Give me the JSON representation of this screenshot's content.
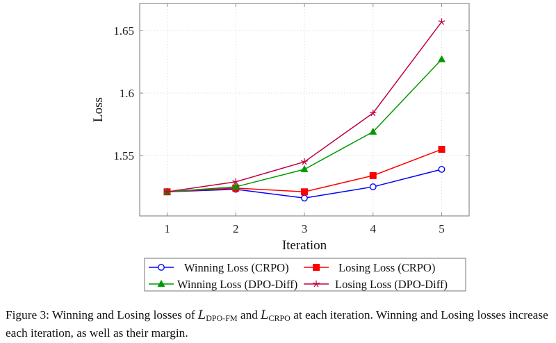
{
  "chart_data": {
    "type": "line",
    "title": "",
    "xlabel": "Iteration",
    "ylabel": "Loss",
    "x": [
      1,
      2,
      3,
      4,
      5
    ],
    "xlim": [
      0.6,
      5.4
    ],
    "ylim": [
      1.5017,
      1.6717
    ],
    "xticks": [
      1,
      2,
      3,
      4,
      5
    ],
    "xtick_labels": [
      "1",
      "2",
      "3",
      "4",
      "5"
    ],
    "yticks": [
      1.55,
      1.6,
      1.65
    ],
    "ytick_labels": [
      "1.55",
      "1.6",
      "1.65"
    ],
    "grid": true,
    "legend_position": "bottom-outside",
    "series": [
      {
        "name": "Winning Loss (CRPO)",
        "color": "#0000ff",
        "marker": "circle-open",
        "values": [
          1.521,
          1.523,
          1.516,
          1.525,
          1.539
        ]
      },
      {
        "name": "Losing Loss (CRPO)",
        "color": "#ff0000",
        "marker": "square",
        "values": [
          1.521,
          1.524,
          1.521,
          1.534,
          1.555
        ]
      },
      {
        "name": "Winning Loss (DPO-Diff)",
        "color": "#009900",
        "marker": "triangle",
        "values": [
          1.521,
          1.525,
          1.539,
          1.569,
          1.627
        ]
      },
      {
        "name": "Losing Loss (DPO-Diff)",
        "color": "#bf0040",
        "marker": "star",
        "values": [
          1.521,
          1.529,
          1.545,
          1.584,
          1.657
        ]
      }
    ]
  },
  "caption": {
    "prefix": "Figure 3: Winning and Losing losses of ",
    "sym1": "L",
    "sub1": "DPO-FM",
    "mid": " and ",
    "sym2": "L",
    "sub2": "CRPO",
    "suffix": " at each iteration. Winning and Losing losses increase each iteration, as well as their margin."
  }
}
